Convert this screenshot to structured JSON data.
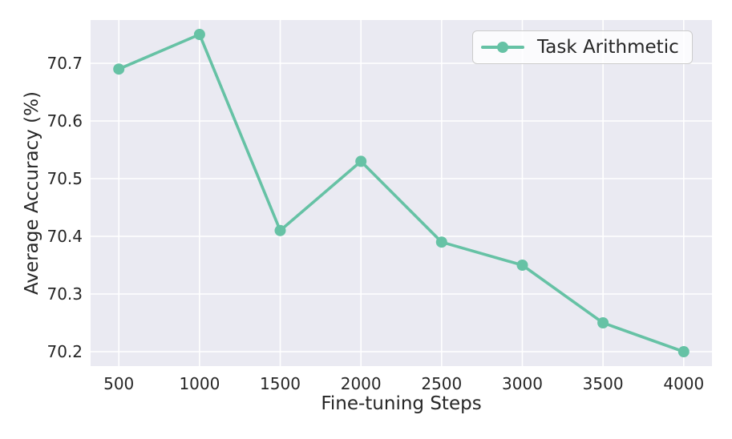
{
  "chart_data": {
    "type": "line",
    "title": "",
    "xlabel": "Fine-tuning Steps",
    "ylabel": "Average Accuracy (%)",
    "x": [
      500,
      1000,
      1500,
      2000,
      2500,
      3000,
      3500,
      4000
    ],
    "series": [
      {
        "name": "Task Arithmetic",
        "values": [
          70.69,
          70.75,
          70.41,
          70.53,
          70.39,
          70.35,
          70.25,
          70.2
        ]
      }
    ],
    "xticks": [
      500,
      1000,
      1500,
      2000,
      2500,
      3000,
      3500,
      4000
    ],
    "xtick_labels": [
      "500",
      "1000",
      "1500",
      "2000",
      "2500",
      "3000",
      "3500",
      "4000"
    ],
    "yticks": [
      70.2,
      70.3,
      70.4,
      70.5,
      70.6,
      70.7
    ],
    "ytick_labels": [
      "70.2",
      "70.3",
      "70.4",
      "70.5",
      "70.6",
      "70.7"
    ],
    "xlim": [
      325,
      4175
    ],
    "ylim": [
      70.175,
      70.775
    ],
    "grid": true,
    "legend_position": "upper right",
    "colors": {
      "line": "#66c2a5",
      "plot_bg": "#eaeaf2",
      "grid": "#ffffff",
      "text": "#262626",
      "legend_border": "#cccccc"
    }
  }
}
